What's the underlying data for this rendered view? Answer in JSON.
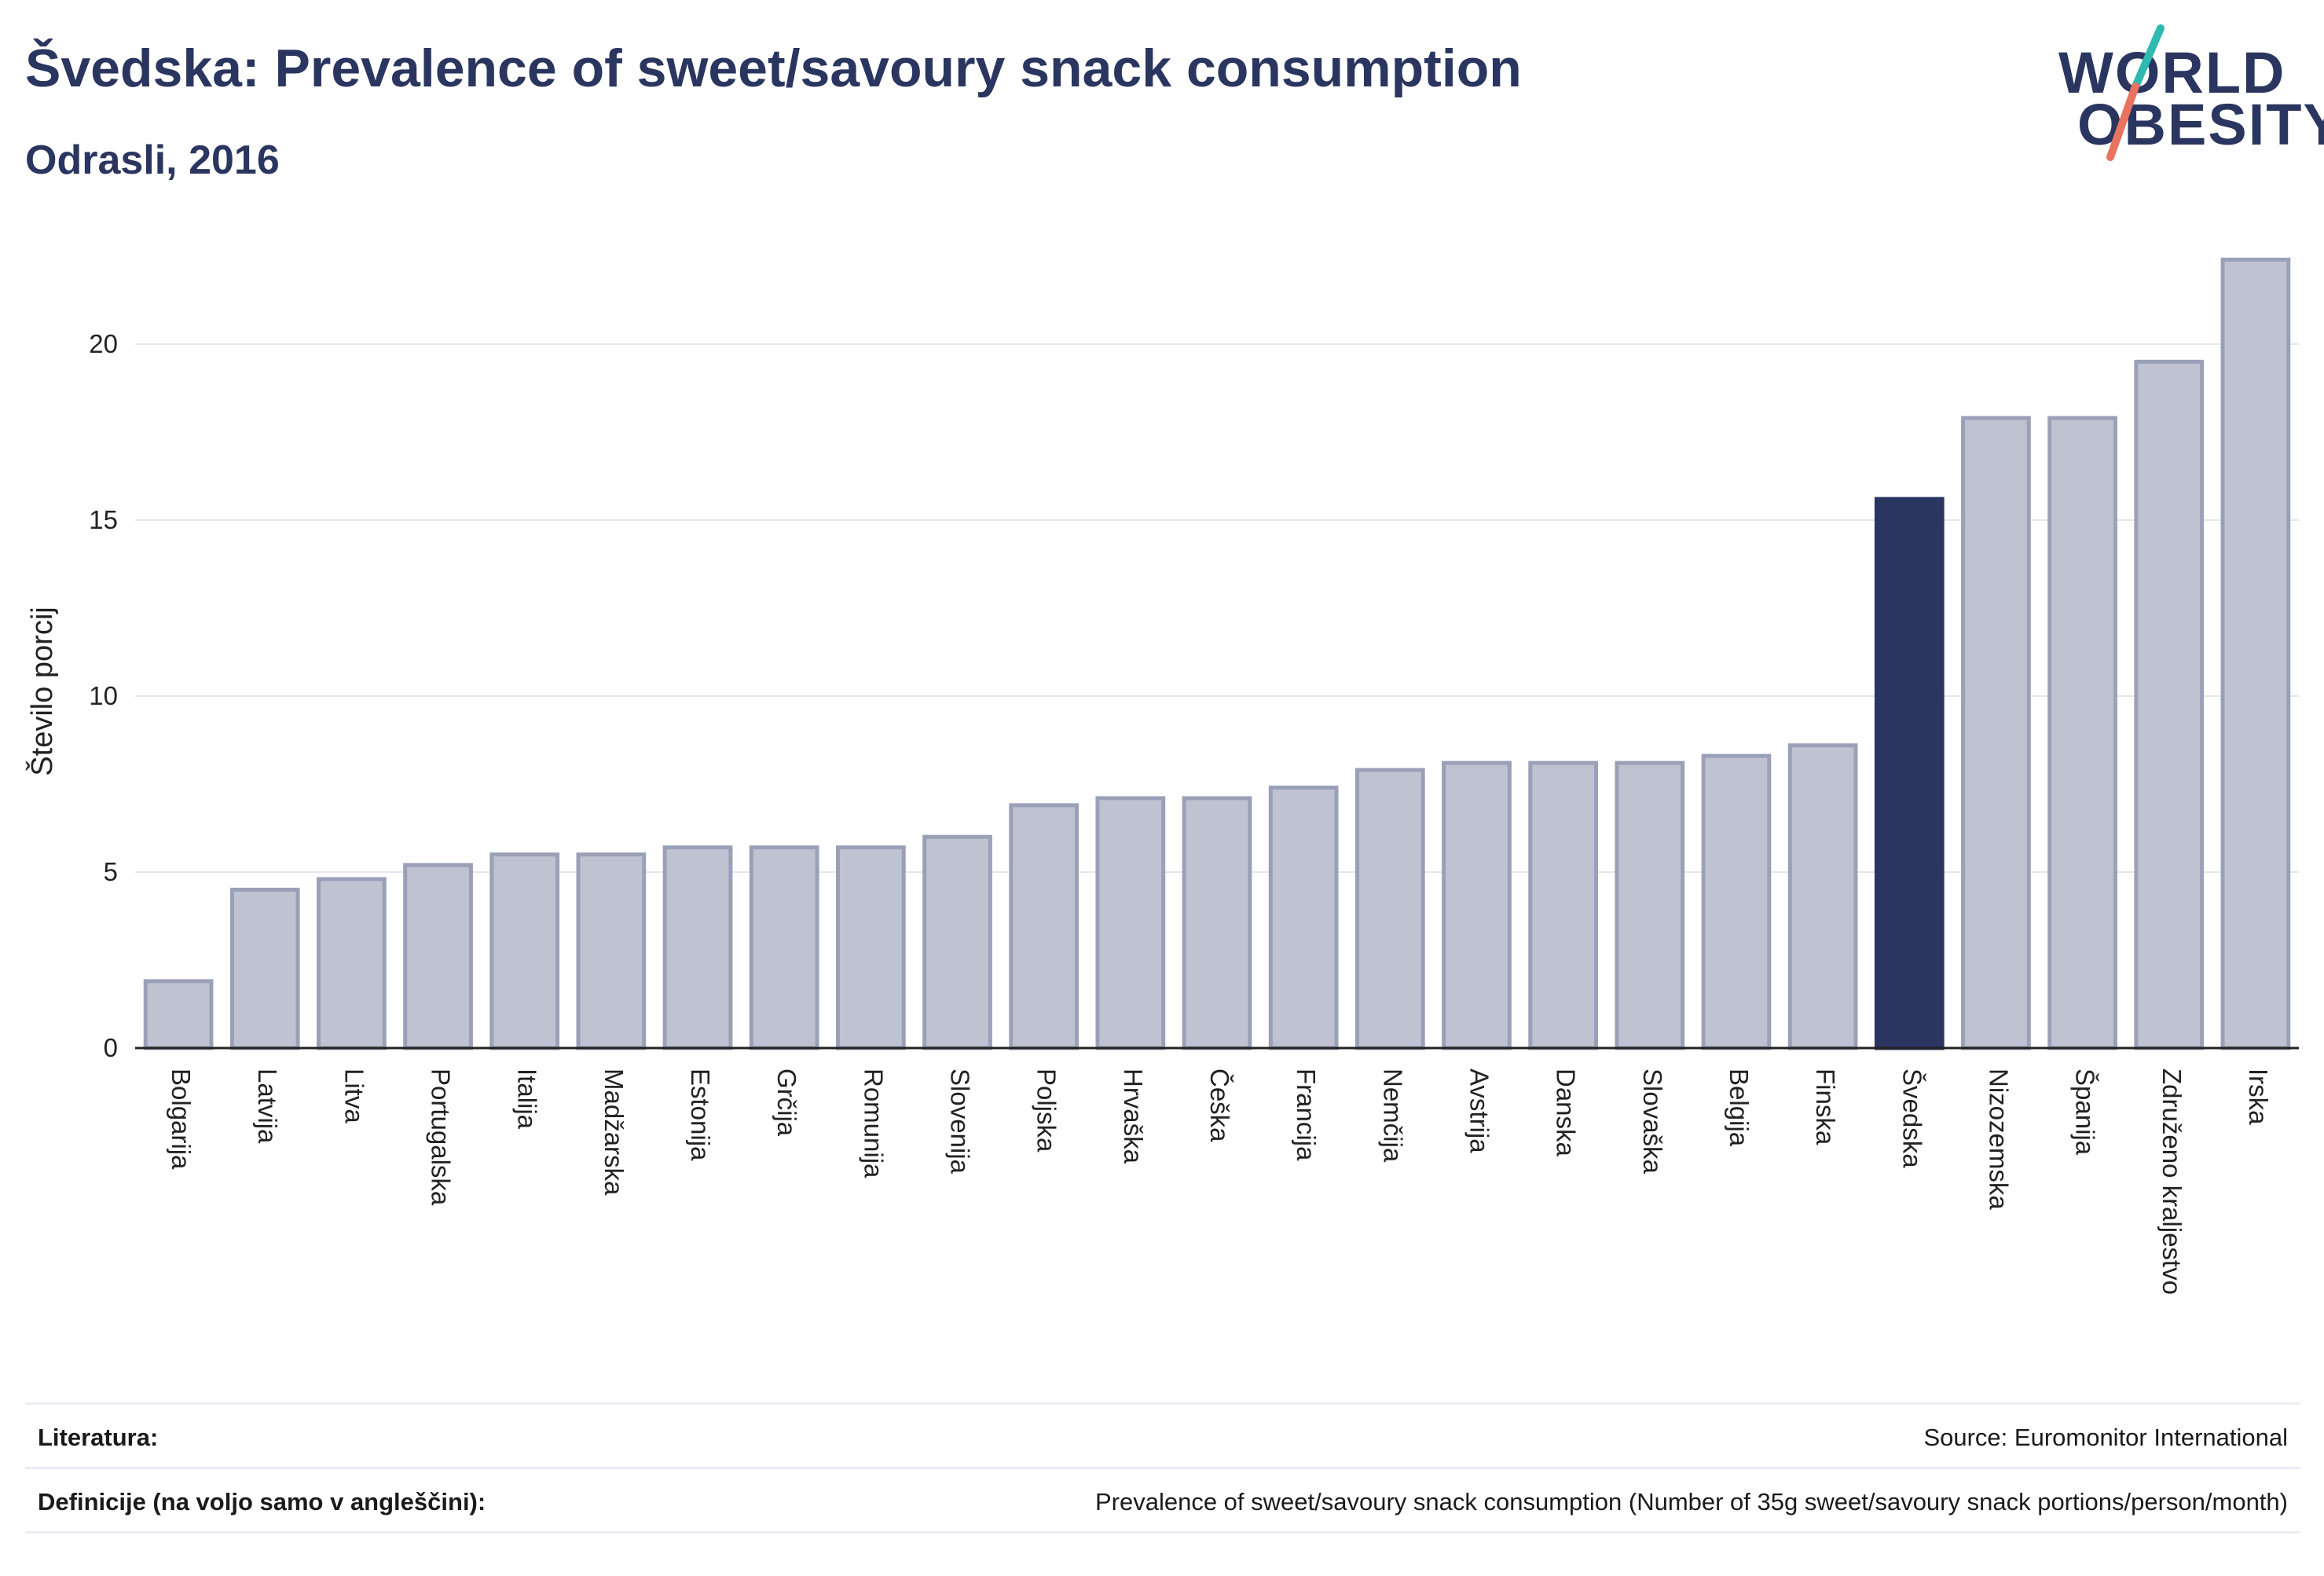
{
  "header": {
    "title": "Švedska: Prevalence of sweet/savoury snack consumption",
    "subtitle": "Odrasli, 2016"
  },
  "logo": {
    "line1": "WORLD",
    "line2": "OBESITY",
    "colors": {
      "text": "#2a3560",
      "slash_top": "#2fb9b1",
      "slash_bottom": "#e8735e"
    }
  },
  "colors": {
    "bar": "#bfc2d0",
    "bar_stroke": "#9aa0b8",
    "highlight": "#2a3560",
    "grid": "#e6e6ee",
    "axis": "#222222"
  },
  "chart_data": {
    "type": "bar",
    "ylabel": "Število porcij",
    "xlabel": "",
    "ylim": [
      0,
      22.5
    ],
    "yticks": [
      0,
      5,
      10,
      15,
      20
    ],
    "grid": true,
    "highlight": "Švedska",
    "categories": [
      "Bolgarija",
      "Latvija",
      "Litva",
      "Portugalska",
      "Italija",
      "Madžarska",
      "Estonija",
      "Grčija",
      "Romunija",
      "Slovenija",
      "Poljska",
      "Hrvaška",
      "Češka",
      "Francija",
      "Nemčija",
      "Avstrija",
      "Danska",
      "Slovaška",
      "Belgija",
      "Finska",
      "Švedska",
      "Nizozemska",
      "Španija",
      "Združeno kraljestvo",
      "Irska"
    ],
    "values": [
      1.9,
      4.5,
      4.8,
      5.2,
      5.5,
      5.5,
      5.7,
      5.7,
      5.7,
      6.0,
      6.9,
      7.1,
      7.1,
      7.4,
      7.9,
      8.1,
      8.1,
      8.1,
      8.3,
      8.6,
      15.6,
      17.9,
      17.9,
      19.5,
      22.4
    ]
  },
  "footer": {
    "sources_label": "Literatura:",
    "sources_value": "Source: Euromonitor International",
    "definitions_label": "Definicije (na voljo samo v angleščini):",
    "definitions_value": "Prevalence of sweet/savoury snack consumption (Number of 35g sweet/savoury snack portions/person/month)"
  }
}
